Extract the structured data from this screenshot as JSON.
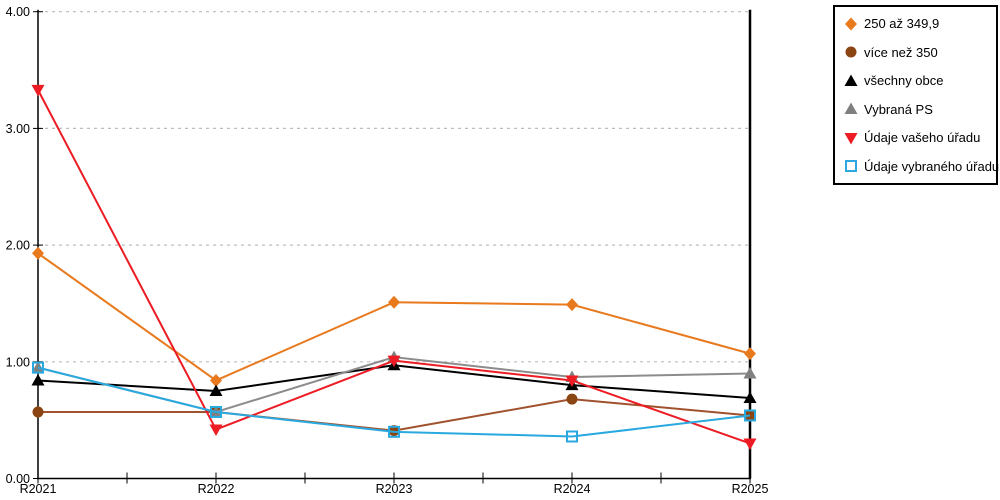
{
  "chart_data": {
    "type": "line",
    "title": "",
    "xlabel": "",
    "ylabel": "",
    "categories": [
      "R2021",
      "R2022",
      "R2023",
      "R2024",
      "R2025"
    ],
    "ylim": [
      0,
      4
    ],
    "yticks": [
      "0.00",
      "1.00",
      "2.00",
      "3.00",
      "4.00"
    ],
    "grid": "horizontal dotted lines at 1.00, 2.00, 3.00, 4.00",
    "legend_position": "top-right",
    "series": [
      {
        "name": "250 až 349,9",
        "marker": "diamond",
        "color": "#E8791D",
        "line_color": "#E8791D",
        "values": [
          1.93,
          0.84,
          1.51,
          1.49,
          1.07
        ]
      },
      {
        "name": "více než 350",
        "marker": "circle",
        "color": "#8B4513",
        "line_color": "#A0522D",
        "values": [
          0.57,
          0.57,
          0.41,
          0.68,
          0.54
        ]
      },
      {
        "name": "všechny obce",
        "marker": "triangle-up",
        "color": "#000000",
        "line_color": "#000000",
        "values": [
          0.84,
          0.75,
          0.97,
          0.8,
          0.69
        ]
      },
      {
        "name": "Vybraná PS",
        "marker": "triangle-up",
        "color": "#808080",
        "line_color": "#8C8C8C",
        "values": [
          0.95,
          0.57,
          1.04,
          0.87,
          0.9
        ]
      },
      {
        "name": "Údaje vašeho úřadu",
        "marker": "triangle-down",
        "color": "#ED1C24",
        "line_color": "#ED1C24",
        "values": [
          3.33,
          0.42,
          1.01,
          0.84,
          0.3
        ]
      },
      {
        "name": "Údaje vybraného úřadu",
        "marker": "square-open",
        "color": "#29A9E0",
        "line_color": "#29A9E0",
        "values": [
          0.95,
          0.57,
          0.4,
          0.36,
          0.54
        ]
      }
    ],
    "colors": {
      "gridline": "#BDBDBD",
      "axis": "#000000",
      "background": "#FFFFFF"
    }
  }
}
